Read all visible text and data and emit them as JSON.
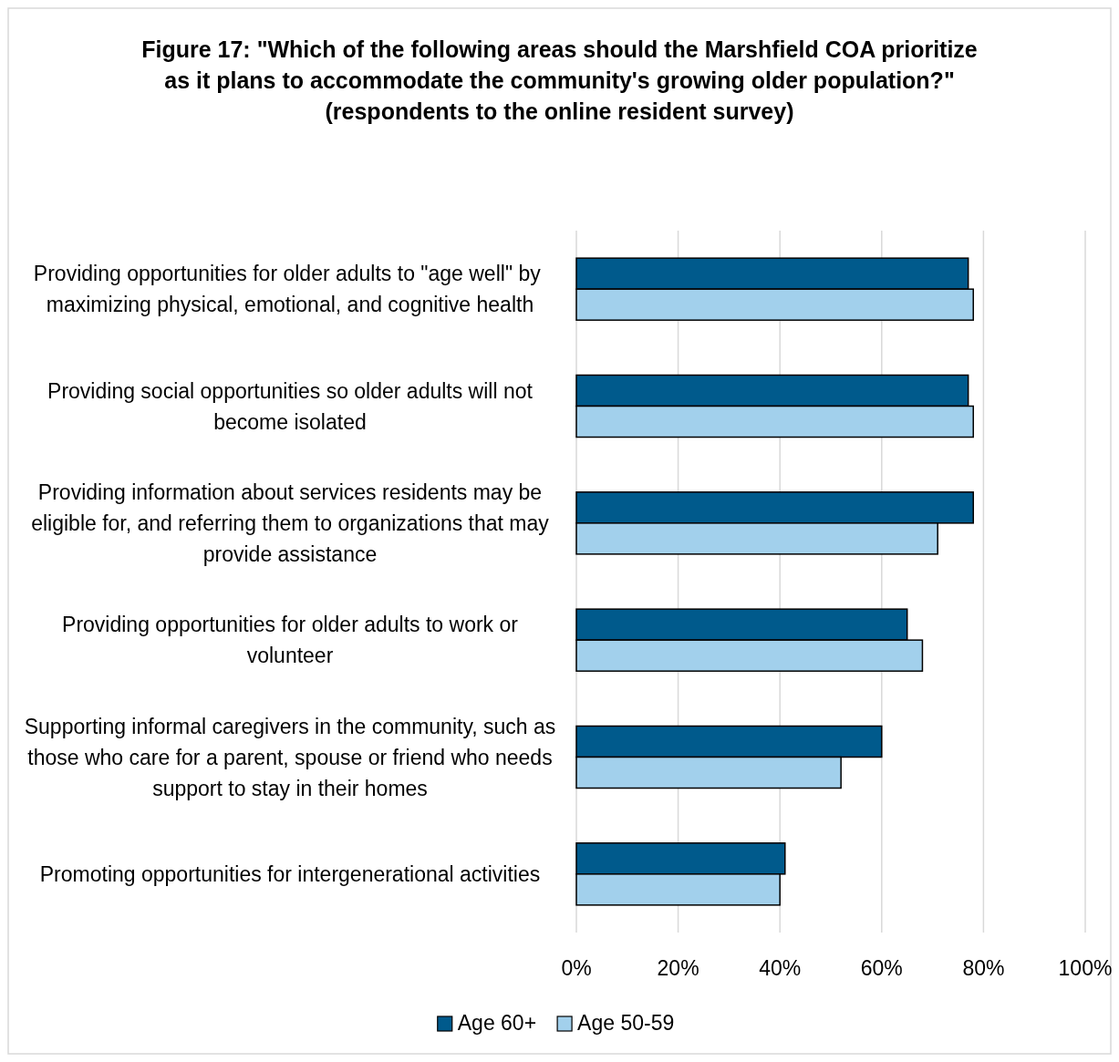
{
  "chart_data": {
    "type": "bar",
    "orientation": "horizontal",
    "title": "Figure 17: \"Which of the following areas should the Marshfield COA prioritize as it plans to accommodate the community's growing older population?\"",
    "subtitle": "(respondents to the online resident survey)",
    "categories": [
      "Providing opportunities for older adults to \"age well\" by  maximizing physical, emotional, and cognitive health",
      "Providing social opportunities so older adults will not become isolated",
      "Providing information about services residents may be eligible for, and referring them to organizations that may provide assistance",
      "Providing opportunities for older adults to work or volunteer",
      "Supporting informal caregivers in the community, such as those who care for a parent, spouse or friend who needs support to stay in their homes",
      "Promoting opportunities for intergenerational activities"
    ],
    "series": [
      {
        "name": "Age 60+",
        "color": "#005a8c",
        "values": [
          77,
          77,
          78,
          65,
          60,
          41
        ]
      },
      {
        "name": "Age 50-59",
        "color": "#a2d0ec",
        "values": [
          78,
          78,
          71,
          68,
          52,
          40
        ]
      }
    ],
    "xlim": [
      0,
      100
    ],
    "xticks": [
      {
        "value": 0,
        "label": "0%"
      },
      {
        "value": 20,
        "label": "20%"
      },
      {
        "value": 40,
        "label": "40%"
      },
      {
        "value": 60,
        "label": "60%"
      },
      {
        "value": 80,
        "label": "80%"
      },
      {
        "value": 100,
        "label": "100%"
      }
    ],
    "grid": "x",
    "legend": "bottom"
  }
}
